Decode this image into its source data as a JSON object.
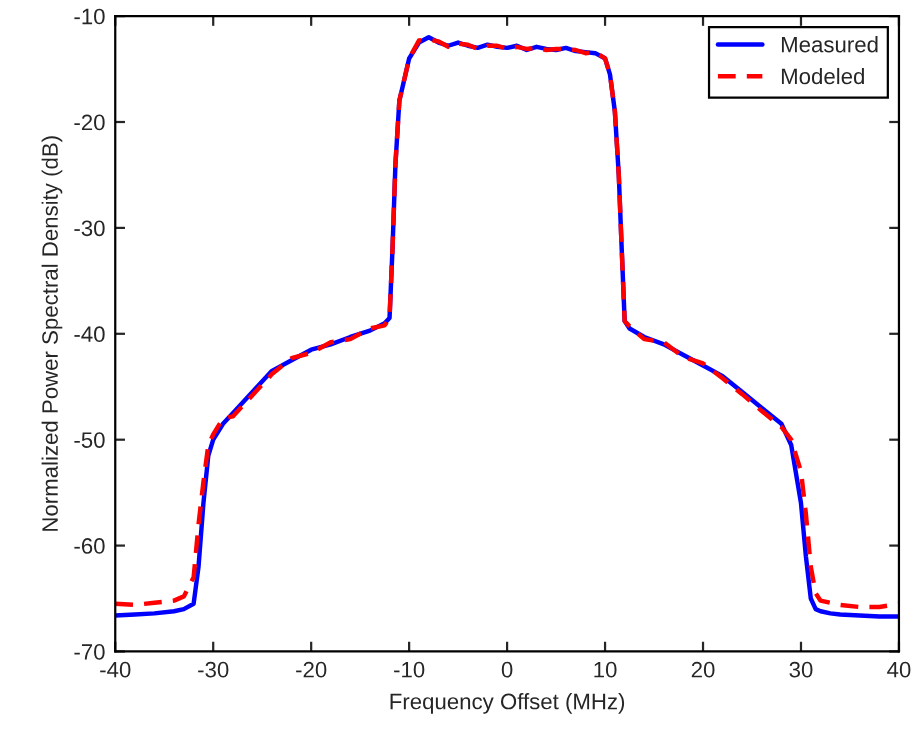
{
  "chart_data": {
    "type": "line",
    "xlabel": "Frequency Offset (MHz)",
    "ylabel": "Normalized Power Spectral Density (dB)",
    "x": [
      -40,
      -38,
      -36,
      -34,
      -33,
      -32,
      -31.5,
      -31,
      -30.5,
      -30,
      -29,
      -28,
      -26,
      -24,
      -22,
      -20,
      -18,
      -16,
      -14,
      -12.5,
      -12,
      -11.7,
      -11.4,
      -11,
      -10.5,
      -10,
      -9,
      -8,
      -7,
      -6,
      -5,
      -4,
      -3,
      -2,
      -1,
      0,
      1,
      2,
      3,
      4,
      5,
      6,
      7,
      8,
      9,
      10,
      10.5,
      11,
      11.4,
      11.7,
      12,
      12.5,
      14,
      16,
      18,
      20,
      22,
      24,
      26,
      28,
      29,
      30,
      30.5,
      31,
      31.5,
      32,
      33,
      34,
      36,
      38,
      40
    ],
    "series": [
      {
        "name": "Measured",
        "color": "#0000ff",
        "line_style": "solid",
        "values": [
          -66.6,
          -66.5,
          -66.4,
          -66.2,
          -66.0,
          -65.5,
          -62,
          -56,
          -51.5,
          -50,
          -48.5,
          -47.5,
          -45.5,
          -43.5,
          -42.5,
          -41.5,
          -41,
          -40.3,
          -39.7,
          -39,
          -38.5,
          -32,
          -24,
          -18,
          -16,
          -14,
          -12.5,
          -12,
          -12.5,
          -12.8,
          -12.5,
          -12.8,
          -13,
          -12.7,
          -12.9,
          -13,
          -12.8,
          -13.2,
          -12.9,
          -13.1,
          -13.2,
          -13,
          -13.3,
          -13.4,
          -13.5,
          -14,
          -15.5,
          -19,
          -25,
          -32,
          -38.8,
          -39.5,
          -40.3,
          -41,
          -42,
          -43,
          -44,
          -45.5,
          -47,
          -48.5,
          -50.5,
          -56,
          -61,
          -65,
          -66,
          -66.2,
          -66.4,
          -66.5,
          -66.6,
          -66.7,
          -66.7
        ]
      },
      {
        "name": "Modeled",
        "color": "#ff0000",
        "line_style": "dashed",
        "values": [
          -65.5,
          -65.6,
          -65.4,
          -65.2,
          -64.8,
          -63,
          -58,
          -54,
          -50.5,
          -49.5,
          -48,
          -47.8,
          -45.8,
          -43.8,
          -42.3,
          -41.8,
          -40.8,
          -40.5,
          -39.5,
          -39.2,
          -38.5,
          -32,
          -24,
          -18,
          -16,
          -14,
          -12.3,
          -12.2,
          -12.4,
          -12.9,
          -12.6,
          -12.7,
          -13.1,
          -12.8,
          -12.8,
          -13.1,
          -12.9,
          -13.1,
          -13,
          -13.2,
          -13.1,
          -13.1,
          -13.2,
          -13.5,
          -13.4,
          -14,
          -15.5,
          -19,
          -25,
          -32,
          -38.8,
          -39.3,
          -40.5,
          -40.8,
          -42.2,
          -42.8,
          -44.2,
          -45.7,
          -47.3,
          -48.8,
          -50,
          -53,
          -57,
          -62,
          -64.5,
          -65.2,
          -65.4,
          -65.6,
          -65.8,
          -65.8,
          -65.5
        ]
      }
    ],
    "xlim": [
      -40,
      40
    ],
    "xticks": [
      -40,
      -30,
      -20,
      -10,
      0,
      10,
      20,
      30,
      40
    ],
    "ylim": [
      -70,
      -10
    ],
    "yticks": [
      -70,
      -60,
      -50,
      -40,
      -30,
      -20,
      -10
    ],
    "grid": false,
    "legend": "top right"
  }
}
